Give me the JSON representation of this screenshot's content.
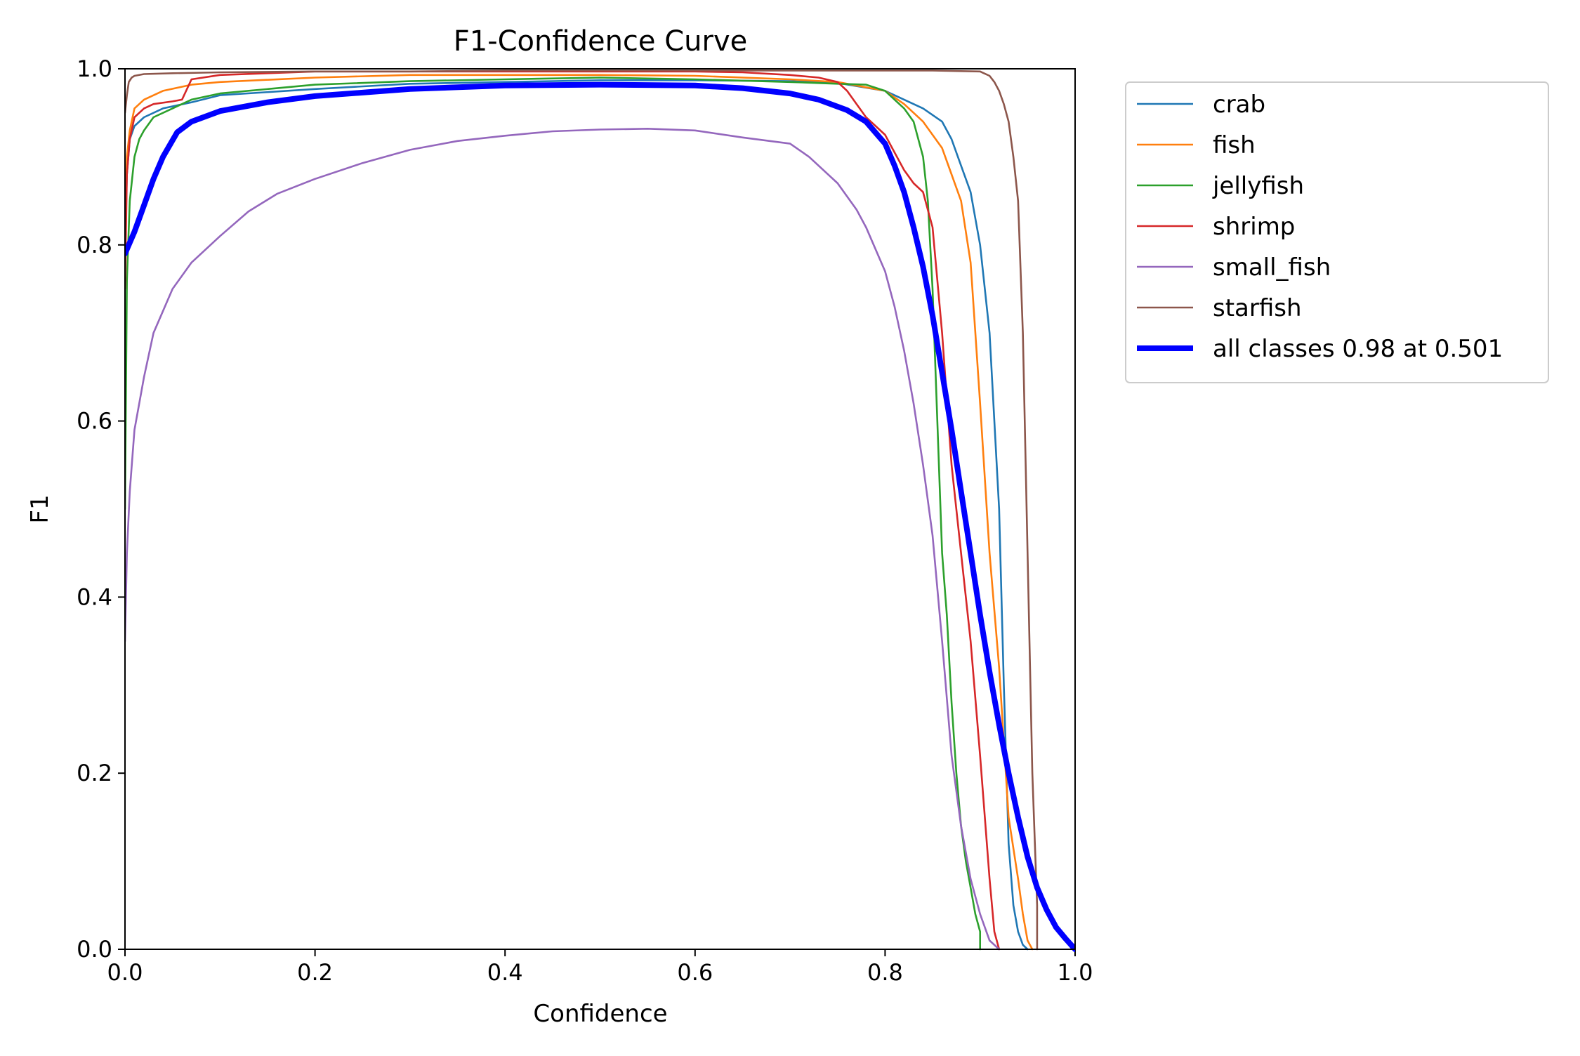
{
  "chart_data": {
    "type": "line",
    "title": "F1-Confidence Curve",
    "xlabel": "Confidence",
    "ylabel": "F1",
    "xlim": [
      0.0,
      1.0
    ],
    "ylim": [
      0.0,
      1.0
    ],
    "xticks": [
      "0.0",
      "0.2",
      "0.4",
      "0.6",
      "0.8",
      "1.0"
    ],
    "yticks": [
      "0.0",
      "0.2",
      "0.4",
      "0.6",
      "0.8",
      "1.0"
    ],
    "grid": false,
    "legend_position": "outside-right",
    "series": [
      {
        "name": "crab",
        "color": "#1f77b4",
        "x": [
          0.0,
          0.002,
          0.005,
          0.01,
          0.02,
          0.04,
          0.07,
          0.1,
          0.2,
          0.3,
          0.4,
          0.5,
          0.6,
          0.7,
          0.75,
          0.8,
          0.82,
          0.84,
          0.86,
          0.87,
          0.88,
          0.89,
          0.9,
          0.91,
          0.92,
          0.925,
          0.93,
          0.935,
          0.94,
          0.945,
          0.95
        ],
        "y": [
          0.8,
          0.88,
          0.92,
          0.935,
          0.945,
          0.955,
          0.962,
          0.97,
          0.977,
          0.983,
          0.985,
          0.987,
          0.987,
          0.986,
          0.984,
          0.975,
          0.965,
          0.955,
          0.94,
          0.92,
          0.89,
          0.86,
          0.8,
          0.7,
          0.5,
          0.3,
          0.12,
          0.05,
          0.02,
          0.005,
          0.0
        ]
      },
      {
        "name": "fish",
        "color": "#ff7f0e",
        "x": [
          0.0,
          0.002,
          0.005,
          0.01,
          0.02,
          0.04,
          0.07,
          0.1,
          0.2,
          0.3,
          0.4,
          0.5,
          0.6,
          0.7,
          0.75,
          0.8,
          0.82,
          0.84,
          0.85,
          0.86,
          0.87,
          0.88,
          0.89,
          0.9,
          0.91,
          0.92,
          0.93,
          0.94,
          0.945,
          0.95,
          0.955
        ],
        "y": [
          0.8,
          0.9,
          0.93,
          0.955,
          0.965,
          0.975,
          0.982,
          0.985,
          0.99,
          0.993,
          0.993,
          0.993,
          0.992,
          0.988,
          0.985,
          0.975,
          0.96,
          0.94,
          0.925,
          0.91,
          0.88,
          0.85,
          0.78,
          0.62,
          0.45,
          0.32,
          0.15,
          0.08,
          0.04,
          0.01,
          0.0
        ]
      },
      {
        "name": "jellyfish",
        "color": "#2ca02c",
        "x": [
          0.0,
          0.002,
          0.005,
          0.01,
          0.015,
          0.02,
          0.03,
          0.05,
          0.07,
          0.1,
          0.2,
          0.3,
          0.4,
          0.5,
          0.6,
          0.7,
          0.75,
          0.78,
          0.8,
          0.81,
          0.82,
          0.83,
          0.84,
          0.845,
          0.85,
          0.855,
          0.86,
          0.865,
          0.87,
          0.875,
          0.88,
          0.885,
          0.89,
          0.895,
          0.9,
          0.9
        ],
        "y": [
          0.5,
          0.76,
          0.85,
          0.9,
          0.92,
          0.93,
          0.945,
          0.955,
          0.965,
          0.972,
          0.982,
          0.986,
          0.988,
          0.99,
          0.988,
          0.985,
          0.983,
          0.982,
          0.975,
          0.965,
          0.955,
          0.94,
          0.9,
          0.85,
          0.75,
          0.6,
          0.45,
          0.38,
          0.28,
          0.2,
          0.14,
          0.1,
          0.07,
          0.04,
          0.02,
          0.0
        ]
      },
      {
        "name": "shrimp",
        "color": "#d62728",
        "x": [
          0.0,
          0.002,
          0.005,
          0.01,
          0.02,
          0.03,
          0.05,
          0.06,
          0.07,
          0.1,
          0.15,
          0.2,
          0.3,
          0.4,
          0.5,
          0.6,
          0.65,
          0.7,
          0.73,
          0.75,
          0.76,
          0.77,
          0.78,
          0.79,
          0.8,
          0.81,
          0.82,
          0.83,
          0.84,
          0.85,
          0.86,
          0.87,
          0.88,
          0.89,
          0.9,
          0.91,
          0.915,
          0.92
        ],
        "y": [
          0.75,
          0.88,
          0.92,
          0.945,
          0.955,
          0.96,
          0.963,
          0.965,
          0.988,
          0.993,
          0.995,
          0.997,
          0.997,
          0.997,
          0.997,
          0.997,
          0.996,
          0.993,
          0.99,
          0.985,
          0.975,
          0.96,
          0.945,
          0.935,
          0.925,
          0.905,
          0.885,
          0.87,
          0.86,
          0.82,
          0.7,
          0.55,
          0.45,
          0.35,
          0.22,
          0.08,
          0.02,
          0.0
        ]
      },
      {
        "name": "small_fish",
        "color": "#9467bd",
        "x": [
          0.0,
          0.002,
          0.005,
          0.01,
          0.02,
          0.03,
          0.05,
          0.07,
          0.1,
          0.13,
          0.16,
          0.2,
          0.25,
          0.3,
          0.35,
          0.4,
          0.45,
          0.5,
          0.55,
          0.6,
          0.65,
          0.7,
          0.72,
          0.75,
          0.77,
          0.78,
          0.8,
          0.81,
          0.82,
          0.83,
          0.84,
          0.85,
          0.86,
          0.87,
          0.88,
          0.89,
          0.9,
          0.91,
          0.92
        ],
        "y": [
          0.35,
          0.45,
          0.52,
          0.59,
          0.65,
          0.7,
          0.75,
          0.78,
          0.81,
          0.838,
          0.858,
          0.875,
          0.893,
          0.908,
          0.918,
          0.924,
          0.929,
          0.931,
          0.932,
          0.93,
          0.922,
          0.915,
          0.9,
          0.87,
          0.84,
          0.82,
          0.77,
          0.73,
          0.68,
          0.62,
          0.55,
          0.47,
          0.35,
          0.22,
          0.14,
          0.08,
          0.04,
          0.01,
          0.0
        ]
      },
      {
        "name": "starfish",
        "color": "#8c564b",
        "x": [
          0.0,
          0.002,
          0.004,
          0.007,
          0.01,
          0.02,
          0.05,
          0.1,
          0.2,
          0.3,
          0.4,
          0.5,
          0.6,
          0.7,
          0.8,
          0.85,
          0.9,
          0.91,
          0.915,
          0.92,
          0.925,
          0.93,
          0.935,
          0.94,
          0.945,
          0.95,
          0.955,
          0.96,
          0.96
        ],
        "y": [
          0.95,
          0.97,
          0.985,
          0.99,
          0.992,
          0.994,
          0.995,
          0.996,
          0.997,
          0.997,
          0.998,
          0.998,
          0.998,
          0.998,
          0.998,
          0.998,
          0.997,
          0.992,
          0.985,
          0.975,
          0.96,
          0.94,
          0.9,
          0.85,
          0.7,
          0.45,
          0.2,
          0.05,
          0.0
        ]
      },
      {
        "name": "all classes 0.98 at 0.501",
        "color": "#0000ff",
        "bold": true,
        "x": [
          0.0,
          0.01,
          0.02,
          0.03,
          0.04,
          0.055,
          0.07,
          0.1,
          0.15,
          0.2,
          0.3,
          0.4,
          0.5,
          0.6,
          0.65,
          0.7,
          0.73,
          0.76,
          0.78,
          0.8,
          0.81,
          0.82,
          0.83,
          0.84,
          0.85,
          0.86,
          0.87,
          0.88,
          0.89,
          0.9,
          0.91,
          0.92,
          0.93,
          0.94,
          0.95,
          0.96,
          0.97,
          0.98,
          0.99,
          1.0
        ],
        "y": [
          0.79,
          0.815,
          0.845,
          0.875,
          0.9,
          0.928,
          0.94,
          0.952,
          0.962,
          0.969,
          0.977,
          0.981,
          0.982,
          0.981,
          0.978,
          0.972,
          0.965,
          0.953,
          0.94,
          0.915,
          0.89,
          0.86,
          0.82,
          0.775,
          0.72,
          0.655,
          0.59,
          0.52,
          0.45,
          0.38,
          0.315,
          0.255,
          0.2,
          0.15,
          0.105,
          0.07,
          0.045,
          0.025,
          0.012,
          0.0
        ]
      }
    ]
  }
}
